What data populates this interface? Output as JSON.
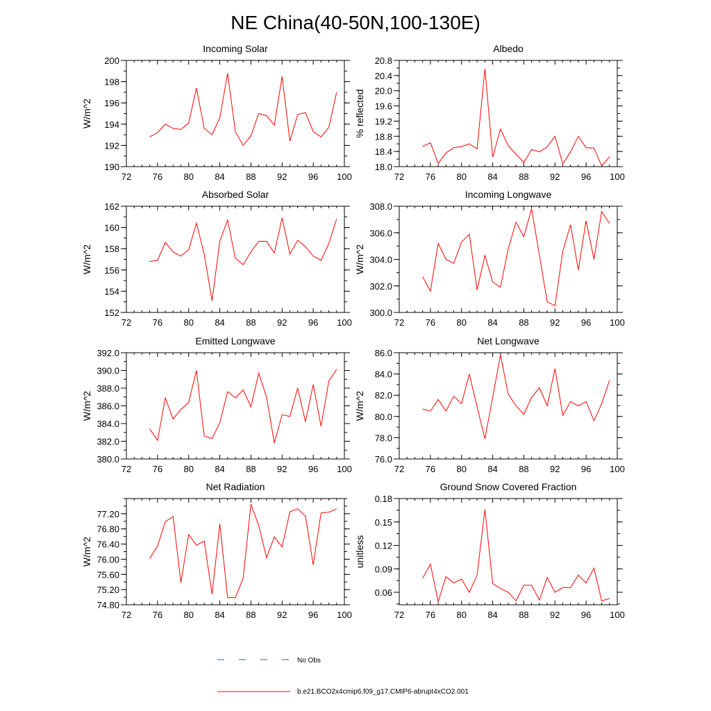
{
  "title": "NE China(40-50N,100-130E)",
  "colors": {
    "model": "#ff0000",
    "obs": "#3b4fd6",
    "axis": "#000000"
  },
  "legend": {
    "obs_label": "No Obs",
    "model_label": "b.e21.BCO2x4cmip6.f09_g17.CMIP6-abrupt4xCO2.001"
  },
  "chart_data": [
    {
      "type": "line",
      "title": "Incoming Solar",
      "ylabel": "W/m^2",
      "xlim": [
        72,
        100
      ],
      "xticks": [
        72,
        76,
        80,
        84,
        88,
        92,
        96,
        100
      ],
      "ylim": [
        190,
        200
      ],
      "yticks": [
        "190",
        "192",
        "194",
        "196",
        "198",
        "200"
      ],
      "x": [
        75,
        76,
        77,
        78,
        79,
        80,
        81,
        82,
        83,
        84,
        85,
        86,
        87,
        88,
        89,
        90,
        91,
        92,
        93,
        94,
        95,
        96,
        97,
        98,
        99
      ],
      "series": [
        {
          "name": "b.e21.BCO2x4cmip6.f09_g17.CMIP6-abrupt4xCO2.001",
          "values": [
            192.8,
            193.2,
            194.0,
            193.6,
            193.5,
            194.1,
            197.4,
            193.6,
            193.0,
            194.6,
            198.8,
            193.3,
            192.0,
            192.9,
            195.0,
            194.8,
            193.9,
            198.5,
            192.4,
            194.9,
            195.1,
            193.3,
            192.8,
            193.7,
            197.0
          ]
        }
      ]
    },
    {
      "type": "line",
      "title": "Albedo",
      "ylabel": "% reflected",
      "xlim": [
        72,
        100
      ],
      "xticks": [
        72,
        76,
        80,
        84,
        88,
        92,
        96,
        100
      ],
      "ylim": [
        18.0,
        20.8
      ],
      "yticks": [
        "18.0",
        "18.4",
        "18.8",
        "19.2",
        "19.6",
        "20.0",
        "20.4",
        "20.8"
      ],
      "x": [
        75,
        76,
        77,
        78,
        79,
        80,
        81,
        82,
        83,
        84,
        85,
        86,
        87,
        88,
        89,
        90,
        91,
        92,
        93,
        94,
        95,
        96,
        97,
        98,
        99
      ],
      "series": [
        {
          "name": "b.e21.BCO2x4cmip6.f09_g17.CMIP6-abrupt4xCO2.001",
          "values": [
            18.53,
            18.63,
            18.08,
            18.36,
            18.5,
            18.53,
            18.6,
            18.47,
            20.58,
            18.25,
            18.99,
            18.55,
            18.33,
            18.11,
            18.45,
            18.39,
            18.52,
            18.8,
            18.07,
            18.39,
            18.8,
            18.5,
            18.49,
            18.02,
            18.26
          ]
        }
      ]
    },
    {
      "type": "line",
      "title": "Absorbed Solar",
      "ylabel": "W/m^2",
      "xlim": [
        72,
        100
      ],
      "xticks": [
        72,
        76,
        80,
        84,
        88,
        92,
        96,
        100
      ],
      "ylim": [
        152,
        162
      ],
      "yticks": [
        "152",
        "154",
        "156",
        "158",
        "160",
        "162"
      ],
      "x": [
        75,
        76,
        77,
        78,
        79,
        80,
        81,
        82,
        83,
        84,
        85,
        86,
        87,
        88,
        89,
        90,
        91,
        92,
        93,
        94,
        95,
        96,
        97,
        98,
        99
      ],
      "series": [
        {
          "name": "b.e21.BCO2x4cmip6.f09_g17.CMIP6-abrupt4xCO2.001",
          "values": [
            156.8,
            156.9,
            158.6,
            157.7,
            157.3,
            157.9,
            160.4,
            157.5,
            153.1,
            158.7,
            160.7,
            157.1,
            156.5,
            157.7,
            158.7,
            158.7,
            157.6,
            160.9,
            157.5,
            158.8,
            158.2,
            157.3,
            156.9,
            158.5,
            160.8
          ]
        }
      ]
    },
    {
      "type": "line",
      "title": "Incoming Longwave",
      "ylabel": "W/m^2",
      "xlim": [
        72,
        100
      ],
      "xticks": [
        72,
        76,
        80,
        84,
        88,
        92,
        96,
        100
      ],
      "ylim": [
        300.0,
        308.0
      ],
      "yticks": [
        "300.0",
        "302.0",
        "304.0",
        "306.0",
        "308.0"
      ],
      "x": [
        75,
        76,
        77,
        78,
        79,
        80,
        81,
        82,
        83,
        84,
        85,
        86,
        87,
        88,
        89,
        90,
        91,
        92,
        93,
        94,
        95,
        96,
        97,
        98,
        99
      ],
      "series": [
        {
          "name": "b.e21.BCO2x4cmip6.f09_g17.CMIP6-abrupt4xCO2.001",
          "values": [
            302.7,
            301.6,
            305.2,
            304.0,
            303.7,
            305.3,
            305.9,
            301.7,
            304.3,
            302.3,
            301.9,
            304.8,
            306.8,
            305.7,
            307.8,
            304.3,
            300.8,
            300.5,
            304.6,
            306.6,
            303.2,
            306.9,
            304.0,
            307.6,
            306.7
          ]
        }
      ]
    },
    {
      "type": "line",
      "title": "Emitted Longwave",
      "ylabel": "W/m^2",
      "xlim": [
        72,
        100
      ],
      "xticks": [
        72,
        76,
        80,
        84,
        88,
        92,
        96,
        100
      ],
      "ylim": [
        380.0,
        392.0
      ],
      "yticks": [
        "380.0",
        "382.0",
        "384.0",
        "386.0",
        "388.0",
        "390.0",
        "392.0"
      ],
      "x": [
        75,
        76,
        77,
        78,
        79,
        80,
        81,
        82,
        83,
        84,
        85,
        86,
        87,
        88,
        89,
        90,
        91,
        92,
        93,
        94,
        95,
        96,
        97,
        98,
        99
      ],
      "series": [
        {
          "name": "b.e21.BCO2x4cmip6.f09_g17.CMIP6-abrupt4xCO2.001",
          "values": [
            383.4,
            382.1,
            386.9,
            384.5,
            385.6,
            386.4,
            390.0,
            382.6,
            382.3,
            384.1,
            387.6,
            386.9,
            387.8,
            385.9,
            389.7,
            387.0,
            381.8,
            385.0,
            384.8,
            388.0,
            384.2,
            388.4,
            383.7,
            388.8,
            390.1
          ]
        }
      ]
    },
    {
      "type": "line",
      "title": "Net Longwave",
      "ylabel": "W/m^2",
      "xlim": [
        72,
        100
      ],
      "xticks": [
        72,
        76,
        80,
        84,
        88,
        92,
        96,
        100
      ],
      "ylim": [
        76.0,
        86.0
      ],
      "yticks": [
        "76.0",
        "78.0",
        "80.0",
        "82.0",
        "84.0",
        "86.0"
      ],
      "x": [
        75,
        76,
        77,
        78,
        79,
        80,
        81,
        82,
        83,
        84,
        85,
        86,
        87,
        88,
        89,
        90,
        91,
        92,
        93,
        94,
        95,
        96,
        97,
        98,
        99
      ],
      "series": [
        {
          "name": "b.e21.BCO2x4cmip6.f09_g17.CMIP6-abrupt4xCO2.001",
          "values": [
            80.7,
            80.5,
            81.6,
            80.5,
            81.9,
            81.2,
            84.0,
            80.9,
            77.9,
            81.8,
            85.8,
            82.1,
            81.0,
            80.2,
            81.8,
            82.7,
            81.0,
            84.5,
            80.1,
            81.4,
            81.0,
            81.4,
            79.6,
            81.2,
            83.4
          ]
        }
      ]
    },
    {
      "type": "line",
      "title": "Net Radiation",
      "ylabel": "W/m^2",
      "xlim": [
        72,
        100
      ],
      "xticks": [
        72,
        76,
        80,
        84,
        88,
        92,
        96,
        100
      ],
      "ylim": [
        74.8,
        77.6
      ],
      "yticks": [
        "74.80",
        "75.20",
        "75.60",
        "76.00",
        "76.40",
        "76.80",
        "77.20"
      ],
      "x": [
        75,
        76,
        77,
        78,
        79,
        80,
        81,
        82,
        83,
        84,
        85,
        86,
        87,
        88,
        89,
        90,
        91,
        92,
        93,
        94,
        95,
        96,
        97,
        98,
        99
      ],
      "series": [
        {
          "name": "b.e21.BCO2x4cmip6.f09_g17.CMIP6-abrupt4xCO2.001",
          "values": [
            76.02,
            76.35,
            76.99,
            77.13,
            75.38,
            76.65,
            76.37,
            76.48,
            75.08,
            76.93,
            74.99,
            74.99,
            75.5,
            77.45,
            76.89,
            76.04,
            76.59,
            76.32,
            77.25,
            77.33,
            77.14,
            75.85,
            77.22,
            77.24,
            77.33
          ]
        }
      ]
    },
    {
      "type": "line",
      "title": "Ground Snow Covered Fraction",
      "ylabel": "unitless",
      "xlim": [
        72,
        100
      ],
      "xticks": [
        72,
        76,
        80,
        84,
        88,
        92,
        96,
        100
      ],
      "ylim": [
        0.044,
        0.18
      ],
      "yticks": [
        "0.06",
        "0.09",
        "0.12",
        "0.15",
        "0.18"
      ],
      "x": [
        75,
        76,
        77,
        78,
        79,
        80,
        81,
        82,
        83,
        84,
        85,
        86,
        87,
        88,
        89,
        90,
        91,
        92,
        93,
        94,
        95,
        96,
        97,
        98,
        99
      ],
      "series": [
        {
          "name": "b.e21.BCO2x4cmip6.f09_g17.CMIP6-abrupt4xCO2.001",
          "values": [
            0.078,
            0.096,
            0.048,
            0.08,
            0.072,
            0.077,
            0.06,
            0.082,
            0.166,
            0.071,
            0.065,
            0.06,
            0.049,
            0.069,
            0.069,
            0.05,
            0.079,
            0.06,
            0.066,
            0.066,
            0.082,
            0.072,
            0.091,
            0.049,
            0.052
          ]
        }
      ]
    }
  ]
}
